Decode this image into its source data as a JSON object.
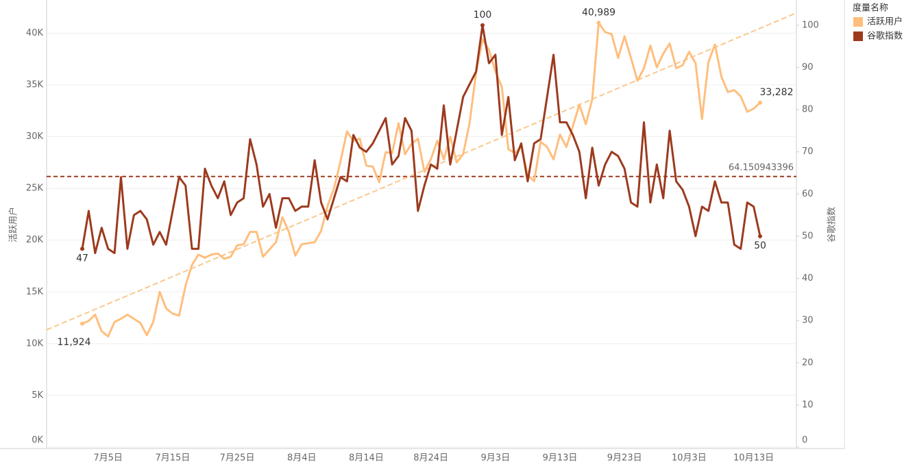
{
  "chart_data": {
    "type": "line",
    "categories": [
      null,
      null,
      null,
      null,
      "7月5日",
      null,
      null,
      null,
      null,
      null,
      null,
      null,
      null,
      null,
      "7月15日",
      null,
      null,
      null,
      null,
      null,
      null,
      null,
      null,
      null,
      "7月25日",
      null,
      null,
      null,
      null,
      null,
      null,
      null,
      null,
      null,
      "8月4日",
      null,
      null,
      null,
      null,
      null,
      null,
      null,
      null,
      null,
      "8月14日",
      null,
      null,
      null,
      null,
      null,
      null,
      null,
      null,
      null,
      "8月24日",
      null,
      null,
      null,
      null,
      null,
      null,
      null,
      null,
      null,
      "9月3日",
      null,
      null,
      null,
      null,
      null,
      null,
      null,
      null,
      null,
      "9月13日",
      null,
      null,
      null,
      null,
      null,
      null,
      null,
      null,
      null,
      "9月23日",
      null,
      null,
      null,
      null,
      null,
      null,
      null,
      null,
      null,
      "10月3日",
      null,
      null,
      null,
      null,
      null,
      null,
      null,
      null,
      null,
      "10月13日",
      null
    ],
    "series": [
      {
        "name": "活跃用户",
        "color": "#ffbe7d",
        "axis": "y",
        "values": [
          11924,
          12200,
          12800,
          11200,
          10700,
          12100,
          12400,
          12800,
          12400,
          12000,
          10800,
          12100,
          15000,
          13400,
          12900,
          12700,
          15600,
          17600,
          18600,
          18300,
          18600,
          18700,
          18200,
          18400,
          19500,
          19600,
          20800,
          20800,
          18400,
          19100,
          19800,
          22200,
          20800,
          18500,
          19600,
          19700,
          19800,
          20900,
          23300,
          25000,
          27600,
          30500,
          29600,
          29800,
          27200,
          27100,
          25600,
          28500,
          28400,
          31300,
          28300,
          29300,
          29800,
          26600,
          27800,
          29600,
          27800,
          30000,
          27500,
          28300,
          31300,
          36200,
          39400,
          38400,
          36300,
          34800,
          28800,
          28400,
          29000,
          26300,
          25700,
          29500,
          29000,
          27800,
          30200,
          29000,
          31000,
          33100,
          31200,
          33600,
          40989,
          40100,
          39900,
          37600,
          39700,
          37600,
          35400,
          36600,
          38800,
          36700,
          38000,
          39000,
          36600,
          36900,
          38200,
          37100,
          31700,
          37200,
          38900,
          35800,
          34300,
          34500,
          33900,
          32400,
          32700,
          33282
        ],
        "value_labels": [
          "11,924",
          null,
          null,
          null,
          null,
          null,
          null,
          null,
          null,
          null,
          null,
          null,
          null,
          null,
          null,
          null,
          null,
          null,
          null,
          null,
          null,
          null,
          null,
          null,
          null,
          null,
          null,
          null,
          null,
          null,
          null,
          null,
          null,
          null,
          null,
          null,
          null,
          null,
          null,
          null,
          null,
          null,
          null,
          null,
          null,
          null,
          null,
          null,
          null,
          null,
          null,
          null,
          null,
          null,
          null,
          null,
          null,
          null,
          null,
          null,
          null,
          null,
          null,
          null,
          null,
          null,
          null,
          null,
          null,
          null,
          null,
          null,
          null,
          null,
          null,
          null,
          null,
          null,
          null,
          null,
          "40,989",
          null,
          null,
          null,
          null,
          null,
          null,
          null,
          null,
          null,
          null,
          null,
          null,
          null,
          null,
          null,
          null,
          null,
          null,
          null,
          null,
          null,
          null,
          null,
          null,
          "33,282"
        ],
        "trend_color": "#f9c88c"
      },
      {
        "name": "谷歌指数",
        "color": "#9c3a1e",
        "axis": "y2",
        "values": [
          47,
          56,
          46,
          52,
          47,
          46,
          64,
          47,
          55,
          56,
          54,
          48,
          51,
          48,
          56,
          64,
          62,
          47,
          47,
          66,
          62,
          59,
          63,
          55,
          58,
          59,
          73,
          67,
          57,
          60,
          52,
          59,
          59,
          56,
          57,
          57,
          68,
          58,
          54,
          59,
          64,
          63,
          74,
          71,
          70,
          72,
          75,
          78,
          67,
          69,
          78,
          75,
          56,
          62,
          67,
          66,
          81,
          67,
          75,
          83,
          86,
          89,
          100,
          91,
          93,
          74,
          83,
          68,
          72,
          63,
          72,
          73,
          83,
          93,
          77,
          77,
          74,
          70,
          59,
          71,
          62,
          67,
          70,
          69,
          66,
          58,
          57,
          77,
          58,
          67,
          59,
          75,
          63,
          61,
          57,
          50,
          57,
          56,
          63,
          58,
          58,
          48,
          47,
          58,
          57,
          50
        ]
      }
    ],
    "y_label": "活跃用户",
    "y2_label": "谷歌指数",
    "ylim": [
      0,
      43000
    ],
    "yticks": [
      {
        "value": 0,
        "label": "0K"
      },
      {
        "value": 5000,
        "label": "5K"
      },
      {
        "value": 10000,
        "label": "10K"
      },
      {
        "value": 15000,
        "label": "15K"
      },
      {
        "value": 20000,
        "label": "20K"
      },
      {
        "value": 25000,
        "label": "25K"
      },
      {
        "value": 30000,
        "label": "30K"
      },
      {
        "value": 35000,
        "label": "35K"
      },
      {
        "value": 40000,
        "label": "40K"
      }
    ],
    "y2lim": [
      0,
      105.5
    ],
    "y2ticks": [
      0,
      10,
      20,
      30,
      40,
      50,
      60,
      70,
      80,
      90,
      100
    ],
    "reference_line": {
      "value": 64.150943396,
      "axis": "y2",
      "color": "#9c3a1e"
    },
    "legend_title": "度量名称",
    "legend_position": "top-right",
    "grid": true
  }
}
